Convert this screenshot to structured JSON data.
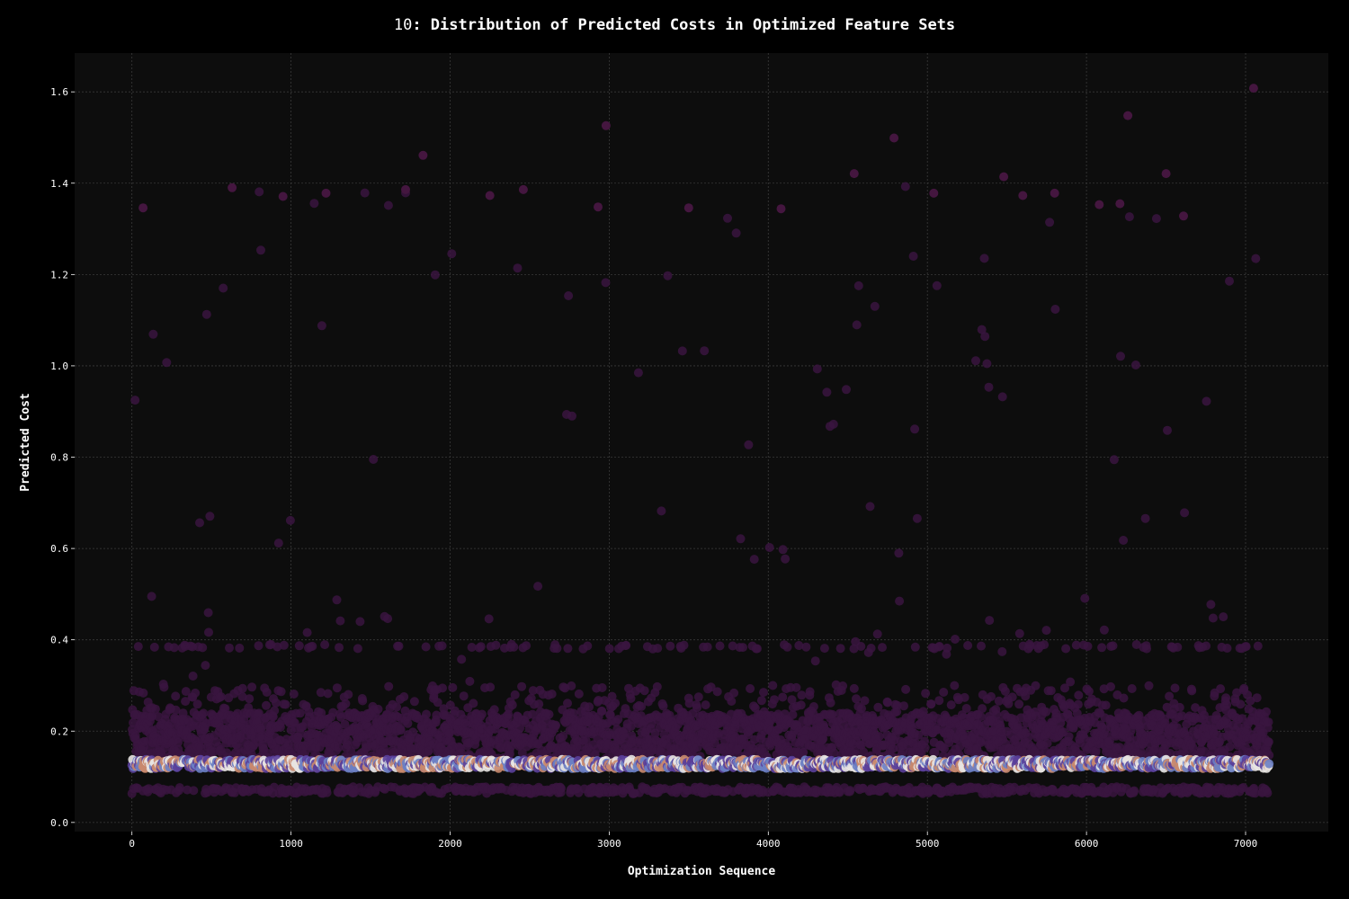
{
  "chart_data": {
    "type": "scatter",
    "title_prefix": "10",
    "title": ": Distribution of Predicted Costs in Optimized Feature Sets",
    "xlabel": "Optimization Sequence",
    "ylabel": "Predicted Cost",
    "xlim": [
      -360,
      7520
    ],
    "ylim": [
      -0.02,
      1.685
    ],
    "x_ticks": [
      0,
      1000,
      2000,
      3000,
      4000,
      5000,
      6000,
      7000
    ],
    "y_ticks": [
      0.0,
      0.2,
      0.4,
      0.6,
      0.8,
      1.0,
      1.2,
      1.4,
      1.6
    ],
    "x_tick_labels": [
      "0",
      "1000",
      "2000",
      "3000",
      "4000",
      "5000",
      "6000",
      "7000"
    ],
    "y_tick_labels": [
      "0.0",
      "0.2",
      "0.4",
      "0.6",
      "0.8",
      "1.0",
      "1.2",
      "1.4",
      "1.6"
    ],
    "grid": true,
    "legend": "none",
    "n_points": 7150,
    "x_range": [
      0,
      7150
    ],
    "colormap": "twilight",
    "colors": {
      "background": "#000000",
      "plot_background": "#0d0d0d",
      "grid": "#3a3a3a",
      "text": "#ffffff",
      "point_dominant": "#3a1540",
      "point_outlier": "#44163f",
      "band_light": "#e8e4e2",
      "band_blue": "#6b7fc4",
      "band_salmon": "#c9896e",
      "band_purple": "#5a3f9a"
    },
    "distribution_description": {
      "central_band_y": 0.128,
      "dense_band_y": [
        0.06,
        0.24
      ],
      "floor_y": 0.063,
      "secondary_cluster_y": 0.385,
      "outlier_range_y": [
        0.25,
        1.61
      ],
      "max_point": {
        "x": 7050,
        "y": 1.608
      }
    },
    "highlighted_points": [
      {
        "x": 7050,
        "y": 1.608
      },
      {
        "x": 6260,
        "y": 1.548
      },
      {
        "x": 2980,
        "y": 1.526
      },
      {
        "x": 4790,
        "y": 1.499
      },
      {
        "x": 1830,
        "y": 1.461
      },
      {
        "x": 4540,
        "y": 1.421
      },
      {
        "x": 6500,
        "y": 1.421
      },
      {
        "x": 5480,
        "y": 1.414
      },
      {
        "x": 630,
        "y": 1.39
      },
      {
        "x": 1720,
        "y": 1.386
      },
      {
        "x": 2460,
        "y": 1.386
      },
      {
        "x": 1220,
        "y": 1.378
      },
      {
        "x": 5040,
        "y": 1.378
      },
      {
        "x": 5800,
        "y": 1.378
      },
      {
        "x": 2250,
        "y": 1.373
      },
      {
        "x": 5600,
        "y": 1.373
      },
      {
        "x": 950,
        "y": 1.371
      },
      {
        "x": 6210,
        "y": 1.355
      },
      {
        "x": 6080,
        "y": 1.353
      },
      {
        "x": 70,
        "y": 1.346
      },
      {
        "x": 3500,
        "y": 1.346
      },
      {
        "x": 2930,
        "y": 1.348
      },
      {
        "x": 4080,
        "y": 1.344
      },
      {
        "x": 6610,
        "y": 1.328
      }
    ]
  }
}
